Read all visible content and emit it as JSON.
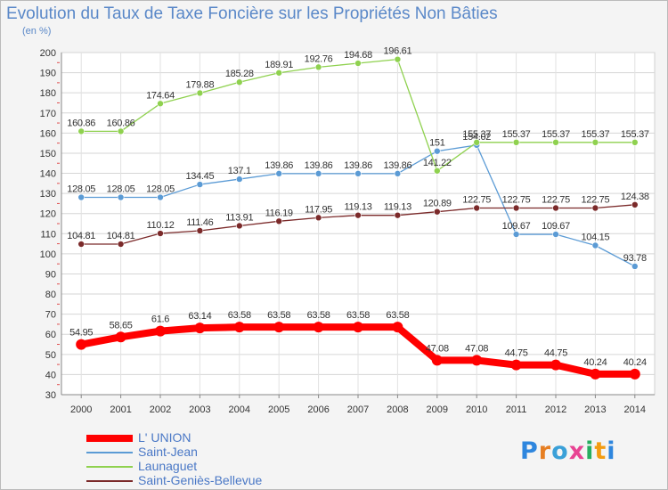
{
  "title": "Evolution du Taux de Taxe Foncière sur les Propriétés Non Bâties",
  "unit_label": "(en %)",
  "logo": {
    "letters": [
      "P",
      "r",
      "o",
      "x",
      "i",
      "t",
      "i"
    ],
    "colors": [
      "#2e86de",
      "#e67e22",
      "#3aa0d8",
      "#e84393",
      "#27ae60",
      "#f39c12",
      "#2e86de"
    ]
  },
  "chart_data": {
    "type": "line",
    "title": "Evolution du Taux de Taxe Foncière sur les Propriétés Non Bâties",
    "ylabel": "(en %)",
    "xlabel": "",
    "ylim": [
      30,
      200
    ],
    "yticks": [
      30,
      40,
      50,
      60,
      70,
      80,
      90,
      100,
      110,
      120,
      130,
      140,
      150,
      160,
      170,
      180,
      190,
      200
    ],
    "grid": true,
    "legend_position": "bottom-left",
    "x": [
      "2000",
      "2001",
      "2002",
      "2003",
      "2004",
      "2005",
      "2006",
      "2007",
      "2008",
      "2009",
      "2010",
      "2011",
      "2012",
      "2013",
      "2014"
    ],
    "series": [
      {
        "name": "L' UNION",
        "color": "#ff0000",
        "thick": true,
        "values": [
          54.95,
          58.65,
          61.6,
          63.14,
          63.58,
          63.58,
          63.58,
          63.58,
          63.58,
          47.08,
          47.08,
          44.75,
          44.75,
          40.24,
          40.24
        ],
        "labels": [
          "54.95",
          "58.65",
          "61.6",
          "63.14",
          "63.58",
          "63.58",
          "63.58",
          "63.58",
          "63.58",
          "47.08",
          "47.08",
          "44.75",
          "44.75",
          "40.24",
          "40.24"
        ]
      },
      {
        "name": "Saint-Jean",
        "color": "#5b9bd5",
        "thick": false,
        "values": [
          128.05,
          128.05,
          128.05,
          134.45,
          137.1,
          139.86,
          139.86,
          139.86,
          139.86,
          151,
          154.02,
          109.67,
          109.67,
          104.15,
          93.78
        ],
        "labels": [
          "128.05",
          "128.05",
          "128.05",
          "134.45",
          "137.1",
          "139.86",
          "139.86",
          "139.86",
          "139.86",
          "151",
          "154.02",
          "109.67",
          "109.67",
          "104.15",
          "93.78"
        ]
      },
      {
        "name": "Launaguet",
        "color": "#8fd14f",
        "thick": false,
        "values": [
          160.86,
          160.86,
          174.64,
          179.88,
          185.28,
          189.91,
          192.76,
          194.68,
          196.61,
          141.22,
          155.37,
          155.37,
          155.37,
          155.37,
          155.37
        ],
        "labels": [
          "160.86",
          "160.86",
          "174.64",
          "179.88",
          "185.28",
          "189.91",
          "192.76",
          "194.68",
          "196.61",
          "141.22",
          "155.37",
          "155.37",
          "155.37",
          "155.37",
          "155.37"
        ]
      },
      {
        "name": "Saint-Geniès-Bellevue",
        "color": "#7b2a2a",
        "thick": false,
        "values": [
          104.81,
          104.81,
          110.12,
          111.46,
          113.91,
          116.19,
          117.95,
          119.13,
          119.13,
          120.89,
          122.75,
          122.75,
          122.75,
          122.75,
          124.38
        ],
        "labels": [
          "104.81",
          "104.81",
          "110.12",
          "111.46",
          "113.91",
          "116.19",
          "117.95",
          "119.13",
          "119.13",
          "120.89",
          "122.75",
          "122.75",
          "122.75",
          "122.75",
          "124.38"
        ]
      }
    ]
  }
}
